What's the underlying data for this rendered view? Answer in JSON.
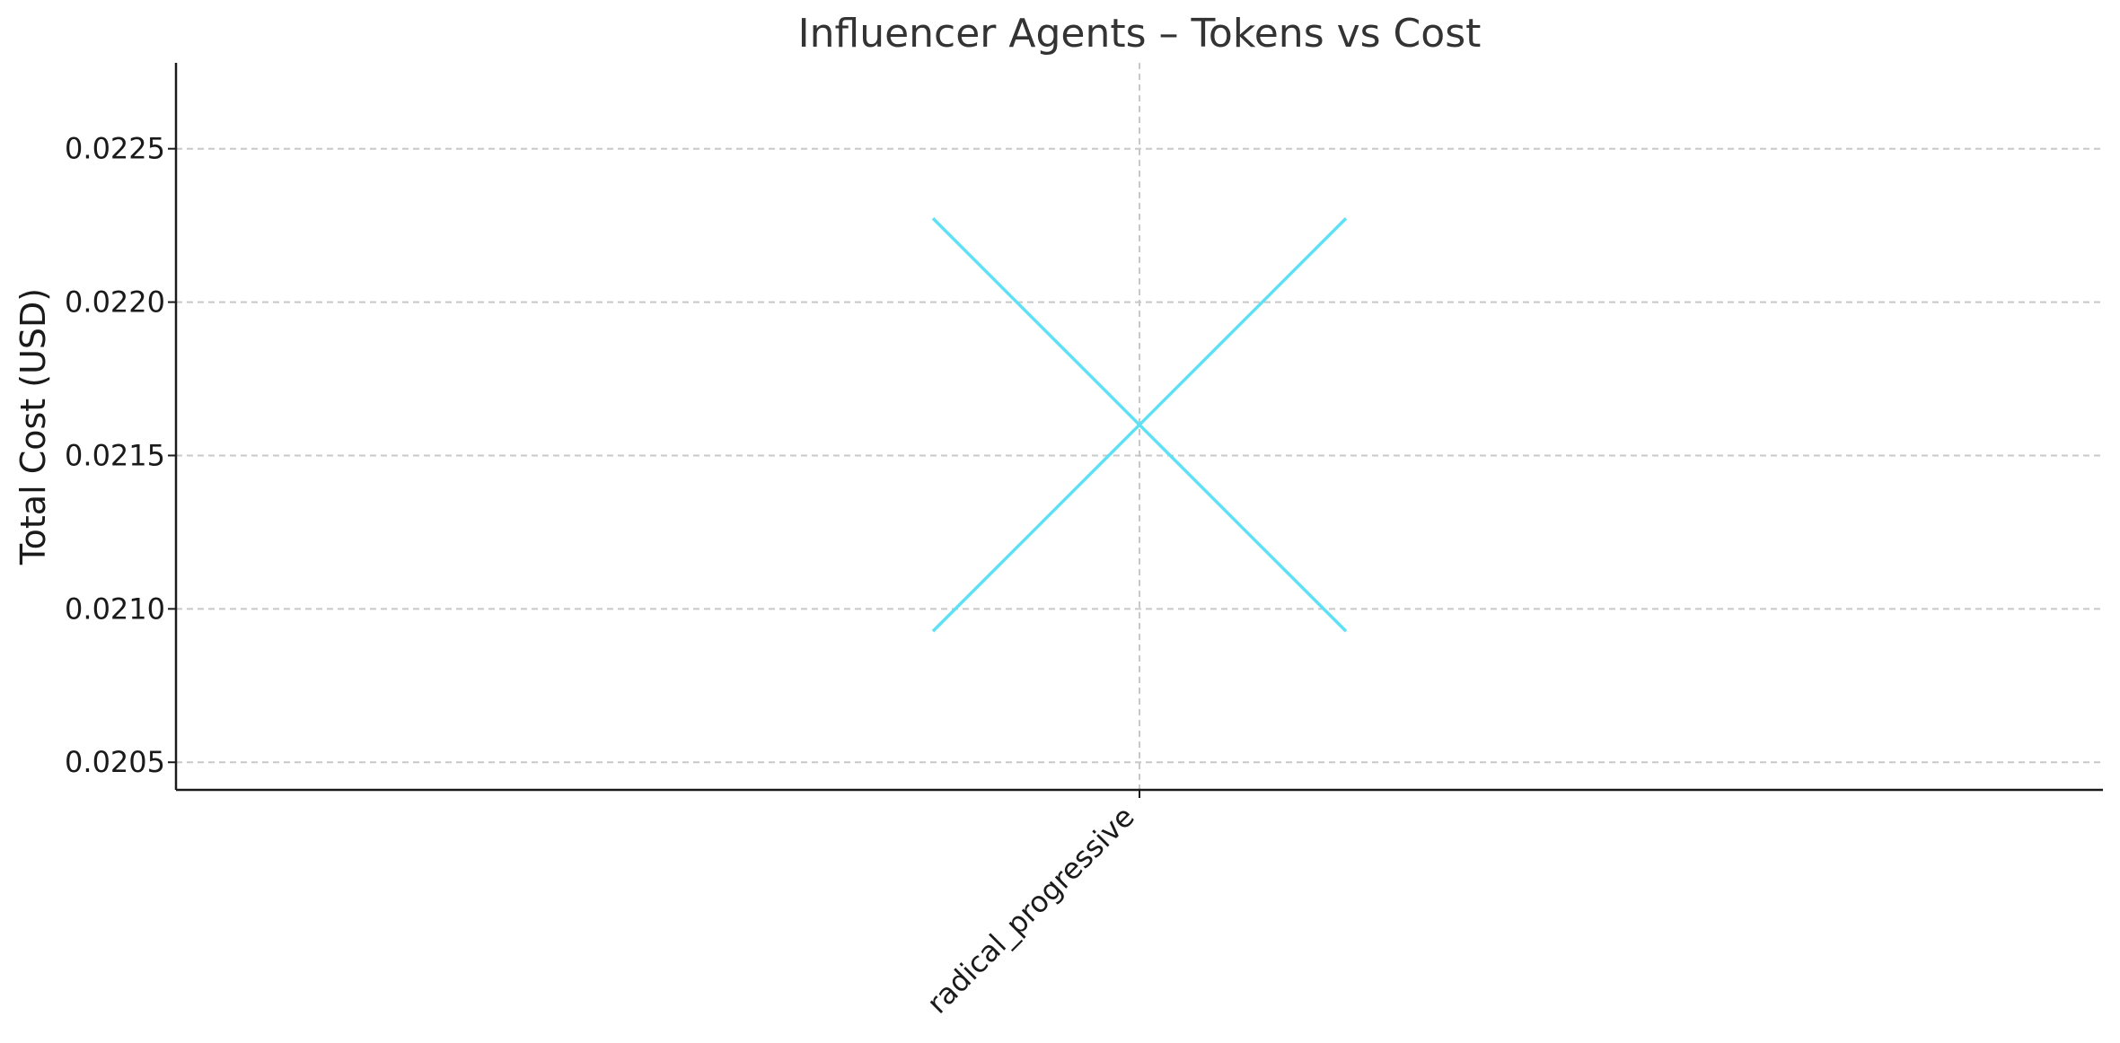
{
  "chart_data": {
    "type": "scatter",
    "title": "Influencer Agents – Tokens vs Cost",
    "xlabel": "",
    "ylabel": "Total Cost (USD)",
    "categories": [
      "radical_progressive"
    ],
    "yticks": [
      "0.0205",
      "0.0210",
      "0.0215",
      "0.0220",
      "0.0225"
    ],
    "ylim": [
      0.02041,
      0.02278
    ],
    "grid": true,
    "marker": "x",
    "marker_color": "#5ee0f5",
    "series": [
      {
        "points": [
          {
            "x": "radical_progressive",
            "y": 0.0216
          }
        ]
      }
    ]
  }
}
